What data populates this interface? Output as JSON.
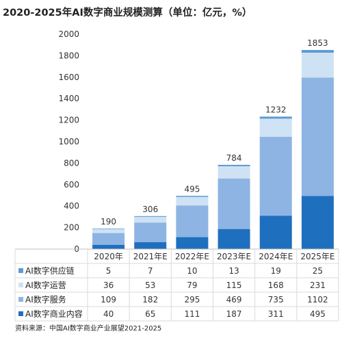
{
  "chart_data": {
    "type": "bar",
    "stacked": true,
    "title": "2020-2025年AI数字商业规模测算（单位：亿元，%）",
    "categories": [
      "2020年",
      "2021年E",
      "2022年E",
      "2023年E",
      "2024年E",
      "2025年E"
    ],
    "ylim": [
      0,
      2000
    ],
    "yticks": [
      "0",
      "200",
      "400",
      "600",
      "800",
      "1000",
      "1200",
      "1400",
      "1600",
      "1800",
      "2000"
    ],
    "totals": [
      "190",
      "306",
      "495",
      "784",
      "1232",
      "1853"
    ],
    "series": [
      {
        "name": "AI数字商业内容",
        "color": "#1f6fbf",
        "values": [
          40,
          65,
          111,
          187,
          311,
          495
        ],
        "labels": [
          "40",
          "65",
          "111",
          "187",
          "311",
          "495"
        ]
      },
      {
        "name": "AI数字服务",
        "color": "#8db4e2",
        "values": [
          109,
          182,
          295,
          469,
          735,
          1102
        ],
        "labels": [
          "109",
          "182",
          "295",
          "469",
          "735",
          "1102"
        ]
      },
      {
        "name": "AI数字运营",
        "color": "#cfe2f3",
        "values": [
          36,
          53,
          79,
          115,
          168,
          231
        ],
        "labels": [
          "36",
          "53",
          "79",
          "115",
          "168",
          "231"
        ]
      },
      {
        "name": "AI数字供应链",
        "color": "#5b9bd5",
        "values": [
          5,
          7,
          10,
          13,
          19,
          25
        ],
        "labels": [
          "5",
          "7",
          "10",
          "13",
          "19",
          "25"
        ]
      }
    ],
    "table_row_order": [
      3,
      2,
      1,
      0
    ],
    "grid": false,
    "legend_placement": "data-table-left"
  },
  "source": "资料来源：中国AI数字商业产业展望2021-2025"
}
